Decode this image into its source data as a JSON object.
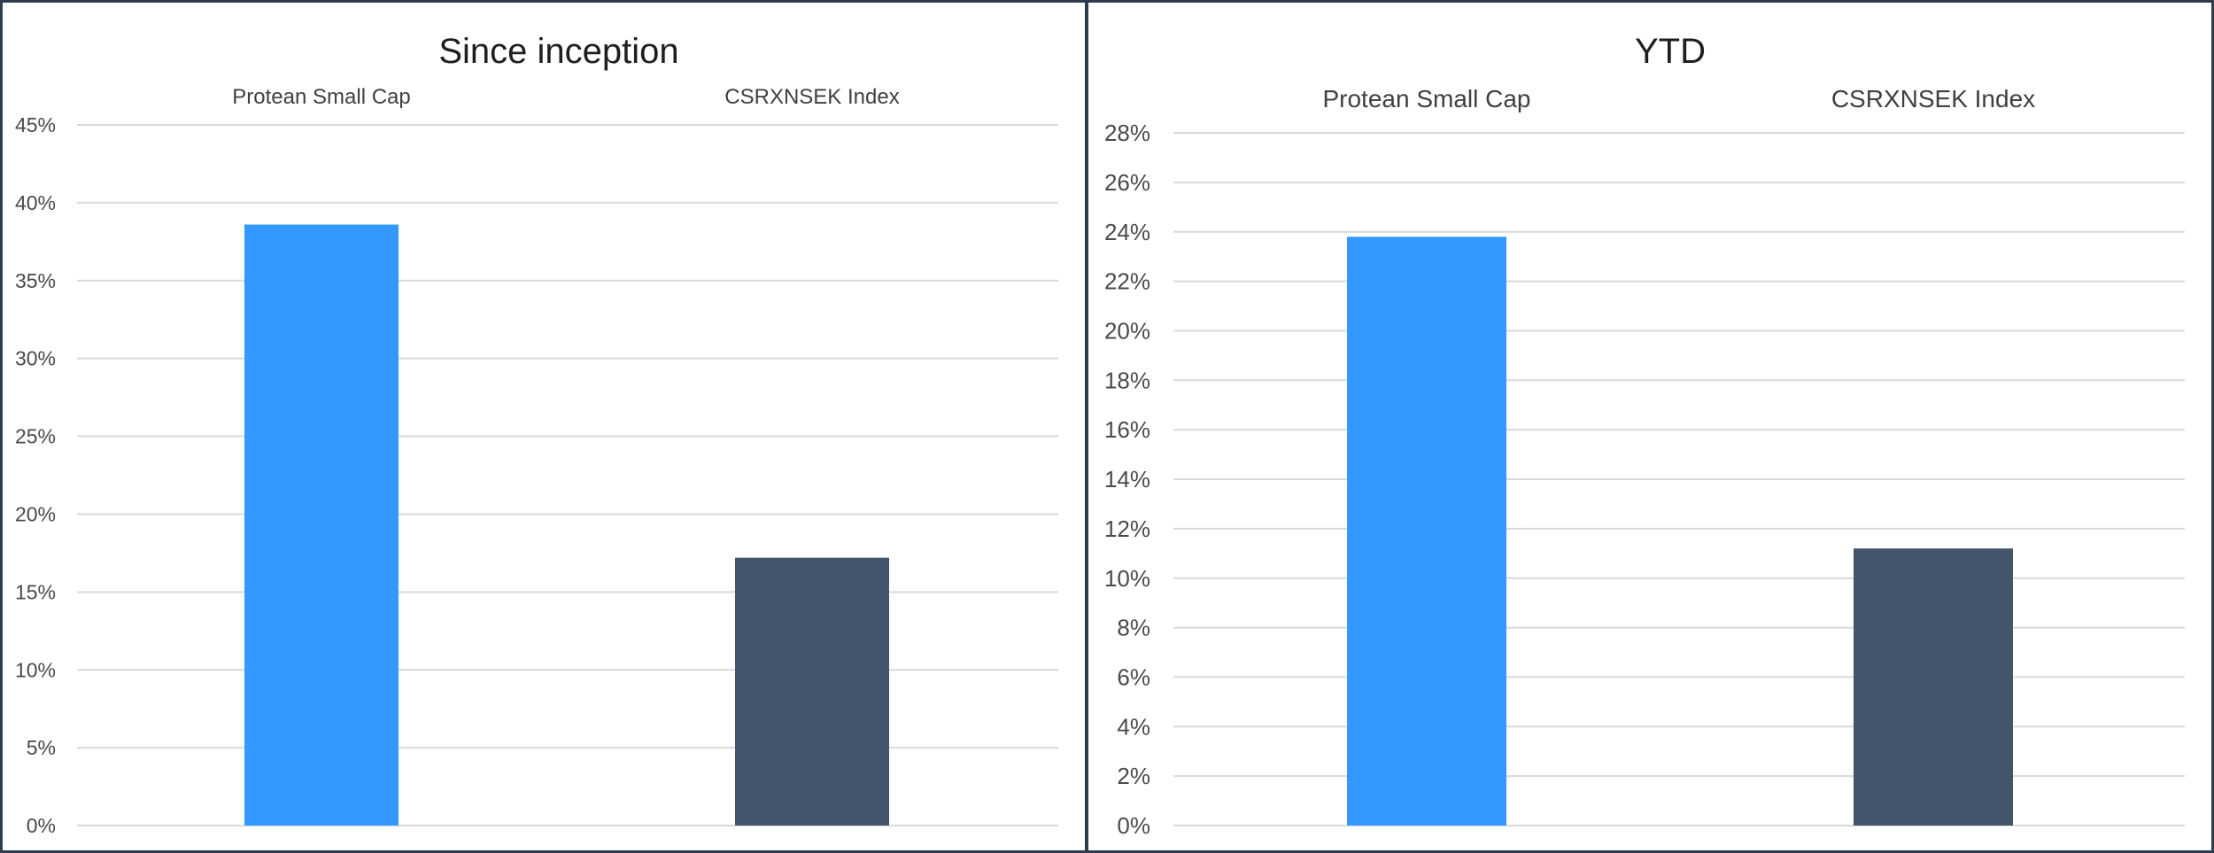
{
  "chart_data": [
    {
      "type": "bar",
      "title": "Since inception",
      "categories": [
        "Protean Small Cap",
        "CSRXNSEK Index"
      ],
      "values": [
        38.6,
        17.2
      ],
      "colors": [
        "#3399ff",
        "#44546a"
      ],
      "ylim": [
        0,
        45
      ],
      "ytick_step": 5,
      "ytick_labels": [
        "0%",
        "5%",
        "10%",
        "15%",
        "20%",
        "25%",
        "30%",
        "35%",
        "40%",
        "45%"
      ],
      "xlabel": "",
      "ylabel": "",
      "grid": true,
      "legend": "none",
      "category_label_position": "top"
    },
    {
      "type": "bar",
      "title": "YTD",
      "categories": [
        "Protean Small Cap",
        "CSRXNSEK Index"
      ],
      "values": [
        23.8,
        11.2
      ],
      "colors": [
        "#3399ff",
        "#44546a"
      ],
      "ylim": [
        0,
        28
      ],
      "ytick_step": 2,
      "ytick_labels": [
        "0%",
        "2%",
        "4%",
        "6%",
        "8%",
        "10%",
        "12%",
        "14%",
        "16%",
        "18%",
        "20%",
        "22%",
        "24%",
        "26%",
        "28%"
      ],
      "xlabel": "",
      "ylabel": "",
      "grid": true,
      "legend": "none",
      "category_label_position": "top"
    }
  ]
}
